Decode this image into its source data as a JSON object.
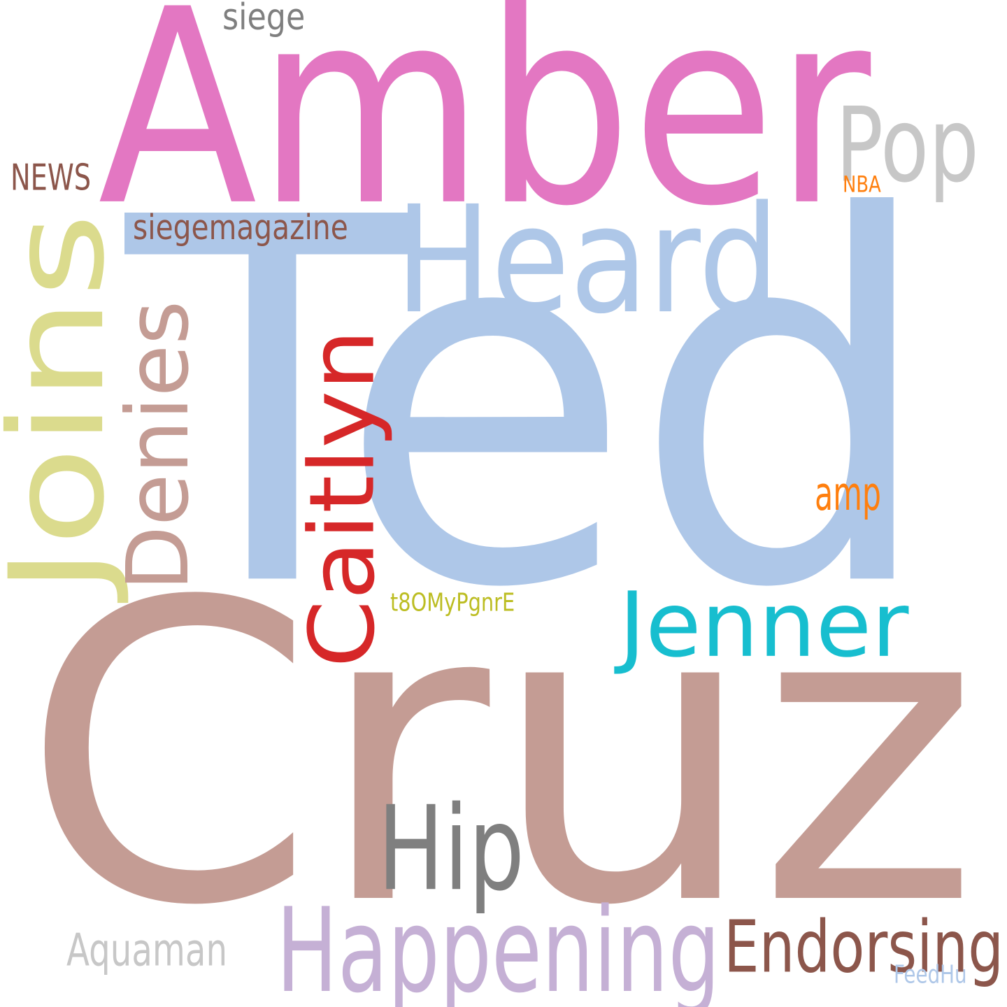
{
  "words": {
    "ted": {
      "text": "Ted",
      "color": "#aec7e8"
    },
    "cruz": {
      "text": "Cruz",
      "color": "#c49c94"
    },
    "amber": {
      "text": "Amber",
      "color": "#e377c2"
    },
    "heard": {
      "text": "Heard",
      "color": "#aec7e8"
    },
    "pop": {
      "text": "Pop",
      "color": "#c7c7c7"
    },
    "joins": {
      "text": "Joins",
      "color": "#dbdb8d"
    },
    "denies": {
      "text": "Denies",
      "color": "#c49c94"
    },
    "caitlyn": {
      "text": "Caitlyn",
      "color": "#d62728"
    },
    "jenner": {
      "text": "Jenner",
      "color": "#17becf"
    },
    "hip": {
      "text": "Hip",
      "color": "#7f7f7f"
    },
    "happening": {
      "text": "Happening",
      "color": "#c5b0d5"
    },
    "endorsing": {
      "text": "Endorsing",
      "color": "#8c564b"
    },
    "aquaman": {
      "text": "Aquaman",
      "color": "#c7c7c7"
    },
    "siege": {
      "text": "siege",
      "color": "#7f7f7f"
    },
    "news": {
      "text": "NEWS",
      "color": "#8c564b"
    },
    "siegemagazine": {
      "text": "siegemagazine",
      "color": "#8c564b"
    },
    "nba": {
      "text": "NBA",
      "color": "#ff7f0e"
    },
    "amp": {
      "text": "amp",
      "color": "#ff7f0e"
    },
    "t8omypgnre": {
      "text": "t8OMyPgnrE",
      "color": "#bcbd22"
    },
    "feedhu": {
      "text": "FeedHu",
      "color": "#aec7e8"
    }
  }
}
